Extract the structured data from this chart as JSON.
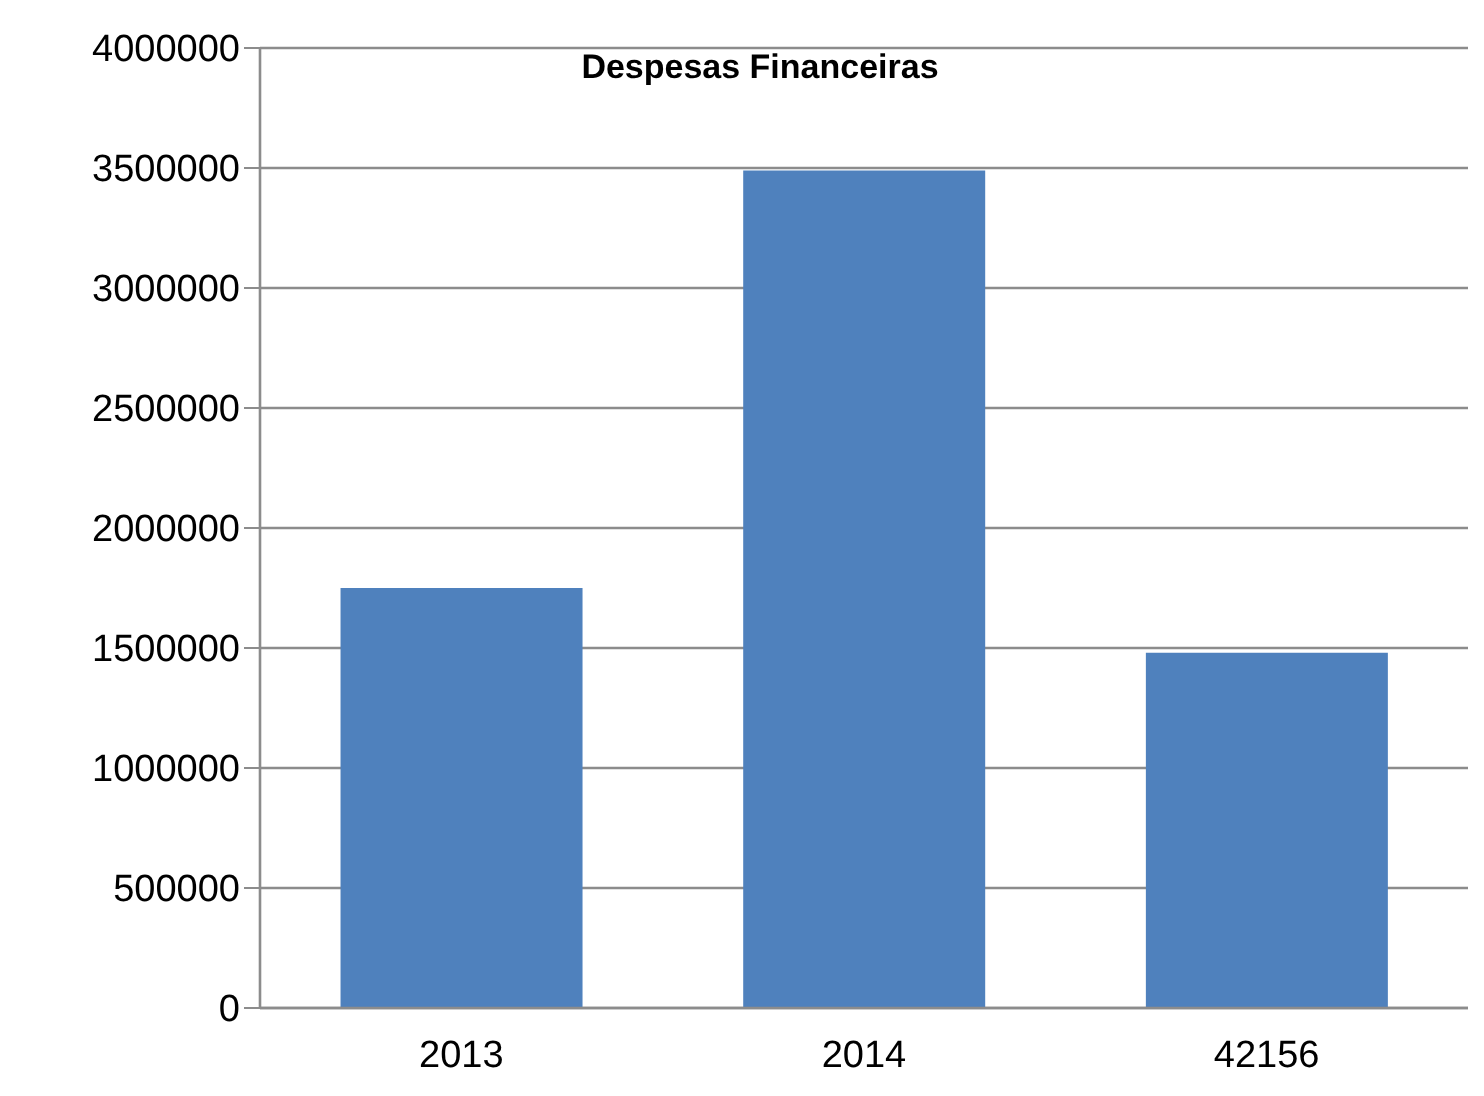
{
  "chart_data": {
    "type": "bar",
    "title": "Despesas Financeiras",
    "categories": [
      "2013",
      "2014",
      "42156"
    ],
    "values": [
      1750000,
      3490000,
      1480000
    ],
    "color": "#4f81bd",
    "ylim": [
      0,
      4000000
    ],
    "yticks": [
      0,
      500000,
      1000000,
      1500000,
      2000000,
      2500000,
      3000000,
      3500000,
      4000000
    ],
    "grid": "y",
    "legend": false
  }
}
